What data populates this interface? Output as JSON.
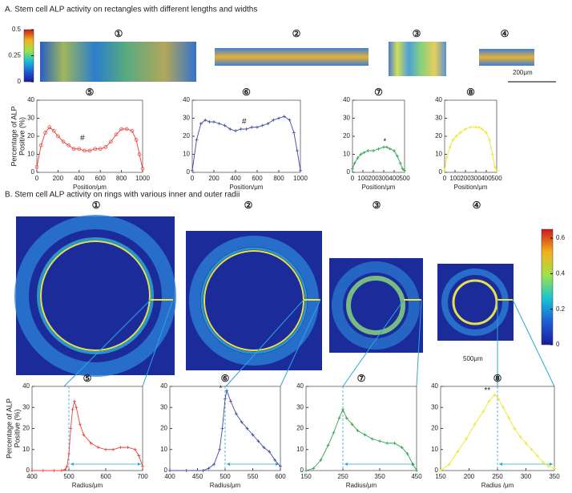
{
  "panel_a": {
    "title": "A. Stem cell ALP activity on rectangles with different lengths and widths",
    "image_labels": [
      "①",
      "②",
      "③",
      "④"
    ],
    "scale_bar": "200μm",
    "colorbar": {
      "lim": [
        0,
        0.5
      ],
      "ticks": [
        0,
        0.25,
        0.5
      ]
    }
  },
  "panel_b": {
    "title": "B. Stem cell ALP activity on rings with various inner and outer radii",
    "image_labels": [
      "①",
      "②",
      "③",
      "④"
    ],
    "scale_bar": "500μm",
    "colorbar": {
      "lim": [
        0,
        0.65
      ],
      "ticks": [
        0,
        0.2,
        0.4,
        0.6
      ]
    }
  },
  "chart_data": [
    {
      "type": "line",
      "label": "⑤",
      "x_label": "Position/μm",
      "y_label": [
        "Percentage of ALP",
        "Positive (%)"
      ],
      "marker": "o",
      "x": [
        0,
        40,
        80,
        120,
        160,
        200,
        250,
        300,
        350,
        400,
        450,
        500,
        550,
        600,
        650,
        700,
        750,
        800,
        850,
        900,
        940,
        970,
        1000
      ],
      "series": [
        {
          "color": "#e8413a",
          "values": [
            3,
            15,
            22,
            25,
            23,
            20,
            17,
            15,
            13,
            13,
            12,
            12,
            13,
            13,
            14,
            17,
            21,
            24,
            24,
            23,
            18,
            10,
            2
          ]
        }
      ],
      "xlim": [
        0,
        1000
      ],
      "xticks": [
        0,
        200,
        400,
        600,
        800,
        1000
      ],
      "ylim": [
        0,
        40
      ],
      "yticks": [
        0,
        10,
        20,
        30,
        40
      ],
      "annotations": [
        {
          "text": "#",
          "x": 430,
          "y": 19
        }
      ]
    },
    {
      "type": "line",
      "label": "⑥",
      "x_label": "Position/μm",
      "marker": "+",
      "x": [
        0,
        40,
        80,
        120,
        160,
        200,
        250,
        300,
        350,
        400,
        450,
        500,
        550,
        600,
        650,
        700,
        750,
        800,
        850,
        900,
        940,
        970,
        1000
      ],
      "series": [
        {
          "color": "#3f48a0",
          "values": [
            1,
            18,
            27,
            29,
            28,
            28,
            27,
            26,
            24,
            23,
            24,
            24,
            25,
            25,
            26,
            27,
            29,
            30,
            31,
            29,
            22,
            12,
            1
          ]
        }
      ],
      "xlim": [
        0,
        1000
      ],
      "xticks": [
        0,
        200,
        400,
        600,
        800,
        1000
      ],
      "ylim": [
        0,
        40
      ],
      "yticks": [
        0,
        10,
        20,
        30,
        40
      ],
      "annotations": [
        {
          "text": "#",
          "x": 480,
          "y": 28
        }
      ]
    },
    {
      "type": "line",
      "label": "⑦",
      "x_label": "Position/μm",
      "marker": "+",
      "x": [
        0,
        20,
        50,
        80,
        110,
        150,
        200,
        250,
        300,
        330,
        360,
        400,
        430,
        460,
        480,
        500
      ],
      "series": [
        {
          "color": "#2ca24a",
          "values": [
            2,
            5,
            8,
            10,
            11,
            12,
            12,
            13,
            14,
            14,
            13,
            12,
            9,
            5,
            2,
            1
          ]
        }
      ],
      "xlim": [
        0,
        500
      ],
      "xticks": [
        0,
        100,
        200,
        300,
        400,
        500
      ],
      "ylim": [
        0,
        40
      ],
      "yticks": [
        0,
        10,
        20,
        30,
        40
      ],
      "annotations": [
        {
          "text": "*",
          "x": 310,
          "y": 17
        }
      ]
    },
    {
      "type": "line",
      "label": "⑧",
      "x_label": "Position/μm",
      "marker": "+",
      "x": [
        0,
        20,
        50,
        80,
        110,
        150,
        200,
        250,
        300,
        330,
        360,
        400,
        430,
        460,
        480,
        500
      ],
      "series": [
        {
          "color": "#ede629",
          "values": [
            1,
            8,
            14,
            18,
            20,
            22,
            24,
            25,
            25,
            25,
            24,
            22,
            18,
            10,
            3,
            1
          ]
        }
      ],
      "xlim": [
        0,
        500
      ],
      "xticks": [
        0,
        100,
        200,
        300,
        400,
        500
      ],
      "ylim": [
        0,
        40
      ],
      "yticks": [
        0,
        10,
        20,
        30,
        40
      ]
    },
    {
      "type": "line",
      "label": "⑤",
      "x_label": "Radius/μm",
      "y_label": [
        "Percentage of ALP",
        "Positive (%)"
      ],
      "marker": "+",
      "x": [
        400,
        430,
        460,
        480,
        490,
        495,
        500,
        505,
        510,
        515,
        520,
        530,
        540,
        560,
        580,
        600,
        620,
        640,
        660,
        680,
        690,
        700
      ],
      "series": [
        {
          "color": "#e8413a",
          "values": [
            0,
            0,
            0,
            0,
            0.5,
            2,
            8,
            20,
            29,
            33,
            30,
            22,
            17,
            13,
            11,
            10,
            10,
            11,
            11,
            10,
            7,
            2
          ]
        }
      ],
      "xlim": [
        400,
        700
      ],
      "xticks": [
        400,
        500,
        600,
        700
      ],
      "ylim": [
        0,
        40
      ],
      "yticks": [
        0,
        10,
        20,
        30,
        40
      ],
      "reference_x": 500
    },
    {
      "type": "line",
      "label": "⑥",
      "x_label": "Radius/μm",
      "marker": "+",
      "x": [
        400,
        430,
        460,
        470,
        480,
        490,
        495,
        500,
        503,
        510,
        520,
        530,
        540,
        550,
        560,
        570,
        580,
        590,
        600
      ],
      "series": [
        {
          "color": "#3f48a0",
          "values": [
            0,
            0,
            0,
            1,
            3,
            10,
            20,
            34,
            38,
            33,
            27,
            23,
            20,
            17,
            14,
            11,
            9,
            5,
            2
          ]
        }
      ],
      "xlim": [
        400,
        600
      ],
      "xticks": [
        400,
        450,
        500,
        550,
        600
      ],
      "ylim": [
        0,
        40
      ],
      "yticks": [
        0,
        10,
        20,
        30,
        40
      ],
      "reference_x": 500,
      "annotations": [
        {
          "text": "*",
          "x": 492,
          "y": 39
        }
      ]
    },
    {
      "type": "line",
      "label": "⑦",
      "x_label": "Radius/μm",
      "marker": "+",
      "x": [
        150,
        170,
        190,
        210,
        225,
        240,
        250,
        260,
        275,
        290,
        310,
        330,
        350,
        370,
        390,
        410,
        425,
        440,
        450
      ],
      "series": [
        {
          "color": "#2ca24a",
          "values": [
            0,
            1,
            5,
            12,
            18,
            25,
            29,
            25,
            22,
            19,
            17,
            15,
            14,
            13,
            13,
            11,
            8,
            3,
            0
          ]
        }
      ],
      "xlim": [
        150,
        450
      ],
      "xticks": [
        150,
        250,
        350,
        450
      ],
      "ylim": [
        0,
        40
      ],
      "yticks": [
        0,
        10,
        20,
        30,
        40
      ],
      "reference_x": 250
    },
    {
      "type": "line",
      "label": "⑧",
      "x_label": "Radius /μm",
      "marker": "+",
      "x": [
        150,
        165,
        180,
        195,
        210,
        225,
        235,
        245,
        252,
        260,
        270,
        280,
        290,
        300,
        310,
        320,
        330,
        340,
        350
      ],
      "series": [
        {
          "color": "#ede629",
          "values": [
            0,
            3,
            9,
            15,
            22,
            28,
            33,
            36,
            34,
            30,
            25,
            20,
            16,
            13,
            10,
            7,
            4,
            2,
            1
          ]
        }
      ],
      "xlim": [
        150,
        350
      ],
      "xticks": [
        150,
        200,
        250,
        300,
        350
      ],
      "ylim": [
        0,
        40
      ],
      "yticks": [
        0,
        10,
        20,
        30,
        40
      ],
      "reference_x": 250,
      "annotations": [
        {
          "text": "**",
          "x": 232,
          "y": 38
        }
      ]
    }
  ]
}
